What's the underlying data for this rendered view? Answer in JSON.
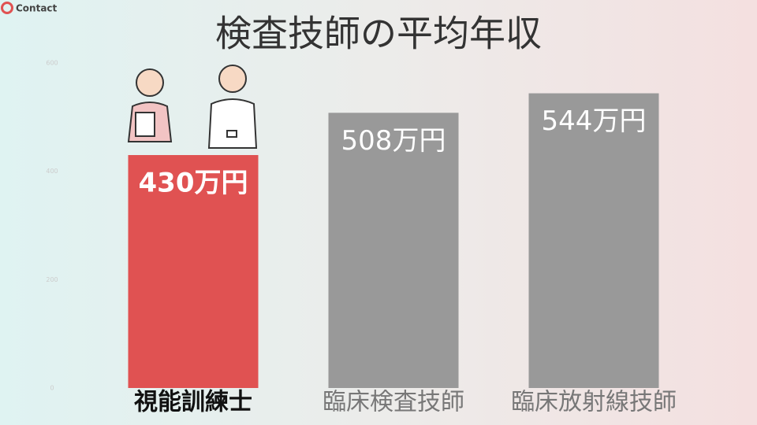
{
  "logo": "Contact",
  "chart_data": {
    "type": "bar",
    "title": "検査技師の平均年収",
    "categories": [
      "視能訓練士",
      "臨床検査技師",
      "臨床放射線技師"
    ],
    "values": [
      430,
      508,
      544
    ],
    "value_labels": [
      "430万円",
      "508万円",
      "544万円"
    ],
    "colors": [
      "#e05252",
      "#999999",
      "#999999"
    ],
    "ylim": [
      0,
      600
    ],
    "yticks": [
      0,
      200,
      400,
      600
    ],
    "grid": false
  }
}
